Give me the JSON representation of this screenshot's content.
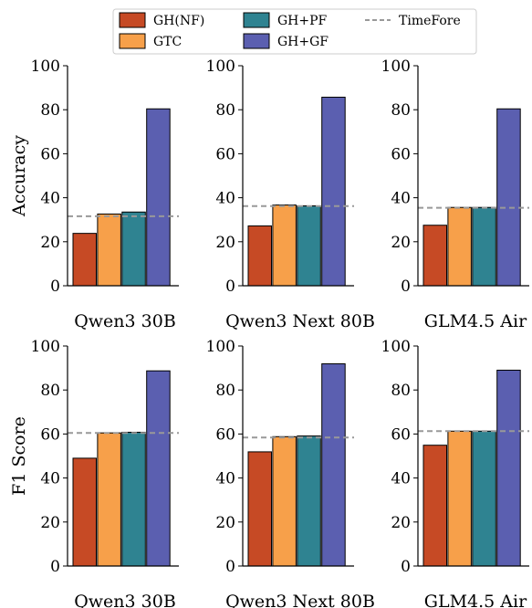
{
  "chart_data": {
    "type": "bar",
    "legend": {
      "placement": "top-center",
      "entries": [
        {
          "name": "GH(NF)",
          "color": "#c64a25",
          "kind": "bar"
        },
        {
          "name": "GTC",
          "color": "#f7a04a",
          "kind": "bar"
        },
        {
          "name": "GH+PF",
          "color": "#2f8391",
          "kind": "bar"
        },
        {
          "name": "GH+GF",
          "color": "#5b5fb0",
          "kind": "bar"
        },
        {
          "name": "TimeFore",
          "color": "#999999",
          "kind": "dashed-line"
        }
      ]
    },
    "series_names": [
      "GH(NF)",
      "GTC",
      "GH+PF",
      "GH+GF"
    ],
    "ylim": [
      0,
      100
    ],
    "yticks": [
      0,
      20,
      40,
      60,
      80,
      100
    ],
    "grid": false,
    "panels": [
      {
        "row_label": "Accuracy",
        "xlabel": "Qwen3 30B",
        "values": [
          23.8,
          32.6,
          33.5,
          80.4
        ],
        "timefore": 31.6
      },
      {
        "row_label": "Accuracy",
        "xlabel": "Qwen3 Next 80B",
        "values": [
          27.2,
          36.7,
          36.3,
          85.7
        ],
        "timefore": 36.2
      },
      {
        "row_label": "Accuracy",
        "xlabel": "GLM4.5 Air",
        "values": [
          27.5,
          35.6,
          35.6,
          80.4
        ],
        "timefore": 35.4
      },
      {
        "row_label": "F1 Score",
        "xlabel": "Qwen3 30B",
        "values": [
          49.0,
          60.5,
          60.8,
          88.7
        ],
        "timefore": 60.5
      },
      {
        "row_label": "F1 Score",
        "xlabel": "Qwen3 Next 80B",
        "values": [
          51.9,
          58.8,
          59.1,
          91.9
        ],
        "timefore": 58.4
      },
      {
        "row_label": "F1 Score",
        "xlabel": "GLM4.5 Air",
        "values": [
          54.9,
          61.3,
          61.3,
          89.0
        ],
        "timefore": 61.3
      }
    ]
  }
}
